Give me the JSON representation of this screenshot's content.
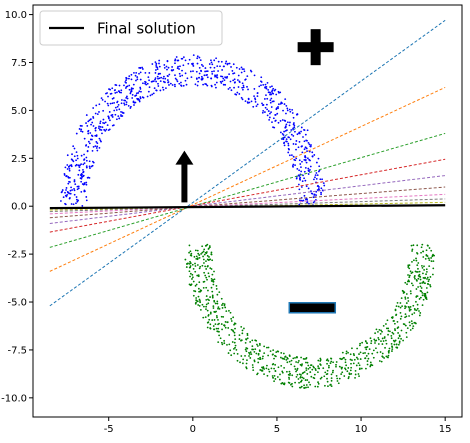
{
  "chart_data": {
    "type": "scatter",
    "title": "",
    "xlabel": "",
    "ylabel": "",
    "xlim": [
      -9.5,
      16.0
    ],
    "ylim": [
      -11.0,
      10.5
    ],
    "x_ticks": [
      -5,
      0,
      5,
      10,
      15
    ],
    "x_tick_labels": [
      "-5",
      "0",
      "5",
      "10",
      "15"
    ],
    "y_ticks": [
      10.0,
      7.5,
      5.0,
      2.5,
      0.0,
      -2.5,
      -5.0,
      -7.5,
      -10.0
    ],
    "y_tick_labels": [
      "10.0",
      "7.5",
      "5.0",
      "2.5",
      "0.0",
      "-2.5",
      "-5.0",
      "-7.5",
      "-10.0"
    ],
    "grid": false,
    "legend": {
      "placement": "top-left",
      "entries": [
        {
          "label": "Final solution",
          "color": "#000000",
          "style": "solid"
        }
      ]
    },
    "scatter_series": [
      {
        "class": "positive",
        "color": "#0000ff",
        "shape": "upper half-ring",
        "center": [
          0.0,
          0.0
        ],
        "outer_radius": 7.9,
        "inner_radius": 6.3,
        "x_range": [
          -7.9,
          7.9
        ],
        "y_range": [
          0.0,
          7.9
        ],
        "n_points": 900
      },
      {
        "class": "negative",
        "color": "#008000",
        "shape": "lower half-ring",
        "center": [
          7.0,
          -2.0
        ],
        "outer_radius": 7.5,
        "inner_radius": 5.9,
        "x_range": [
          -0.5,
          14.5
        ],
        "y_range": [
          -9.5,
          -2.0
        ],
        "n_points": 900
      }
    ],
    "lines": [
      {
        "label": "",
        "color": "#1f77b4",
        "style": "dashed",
        "x": [
          -8.5,
          15.0
        ],
        "y": [
          -5.2,
          9.7
        ]
      },
      {
        "label": "",
        "color": "#ff7f0e",
        "style": "dashed",
        "x": [
          -8.5,
          15.0
        ],
        "y": [
          -3.4,
          6.2
        ]
      },
      {
        "label": "",
        "color": "#2ca02c",
        "style": "dashed",
        "x": [
          -8.5,
          15.0
        ],
        "y": [
          -2.15,
          3.8
        ]
      },
      {
        "label": "",
        "color": "#d62728",
        "style": "dashed",
        "x": [
          -8.5,
          15.0
        ],
        "y": [
          -1.35,
          2.45
        ]
      },
      {
        "label": "",
        "color": "#9467bd",
        "style": "dashed",
        "x": [
          -8.5,
          15.0
        ],
        "y": [
          -0.9,
          1.6
        ]
      },
      {
        "label": "",
        "color": "#8c564b",
        "style": "dashed",
        "x": [
          -8.5,
          15.0
        ],
        "y": [
          -0.6,
          1.0
        ]
      },
      {
        "label": "",
        "color": "#e377c2",
        "style": "dashed",
        "x": [
          -8.5,
          15.0
        ],
        "y": [
          -0.4,
          0.62
        ]
      },
      {
        "label": "",
        "color": "#7f7f7f",
        "style": "dashed",
        "x": [
          -8.5,
          15.0
        ],
        "y": [
          -0.28,
          0.38
        ]
      },
      {
        "label": "",
        "color": "#bcbd22",
        "style": "dashed",
        "x": [
          -8.5,
          15.0
        ],
        "y": [
          -0.2,
          0.2
        ]
      },
      {
        "label": "Final solution",
        "color": "#000000",
        "style": "solid",
        "x": [
          -8.5,
          15.0
        ],
        "y": [
          -0.1,
          0.05
        ]
      }
    ],
    "annotations": [
      {
        "type": "arrow",
        "direction": "up",
        "color": "#000000",
        "x": -0.5,
        "y_from": 0.2,
        "y_to": 2.9
      },
      {
        "type": "plus-symbol",
        "color": "#000000",
        "x": 7.3,
        "y": 8.3
      },
      {
        "type": "minus-symbol",
        "color": "#000000",
        "border_color": "#1f77b4",
        "x": 7.1,
        "y": -5.3
      }
    ]
  }
}
